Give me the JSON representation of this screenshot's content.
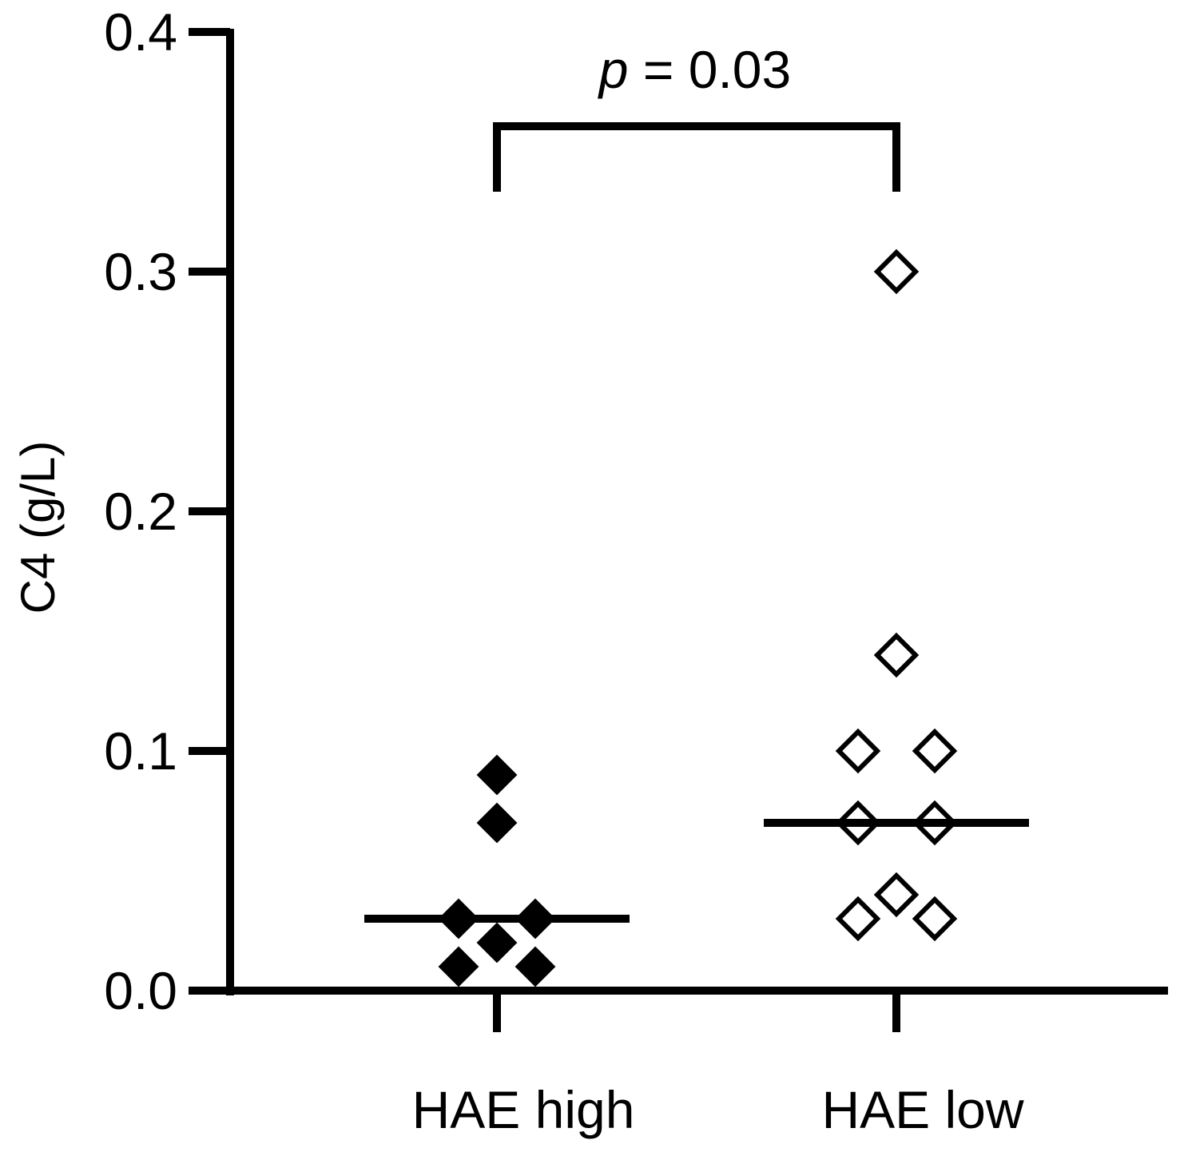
{
  "chart_data": {
    "type": "scatter",
    "title": "",
    "xlabel": "",
    "ylabel": "C4 (g/L)",
    "ylim": [
      0,
      0.4
    ],
    "yticks": [
      "0.0",
      "0.1",
      "0.2",
      "0.3",
      "0.4"
    ],
    "categories": [
      "HAE high",
      "HAE low"
    ],
    "grid": false,
    "legend": "none",
    "series": [
      {
        "category": "HAE high",
        "marker": "filled-diamond",
        "color": "#000000",
        "values": [
          0.09,
          0.07,
          0.03,
          0.03,
          0.02,
          0.01,
          0.01
        ],
        "median": 0.03
      },
      {
        "category": "HAE low",
        "marker": "open-diamond",
        "color": "#000000",
        "values": [
          0.3,
          0.14,
          0.1,
          0.1,
          0.07,
          0.07,
          0.04,
          0.03,
          0.03
        ],
        "median": 0.07
      }
    ],
    "annotation": {
      "text_prefix": "p",
      "text_suffix": " = 0.03",
      "between": [
        "HAE high",
        "HAE low"
      ]
    }
  }
}
